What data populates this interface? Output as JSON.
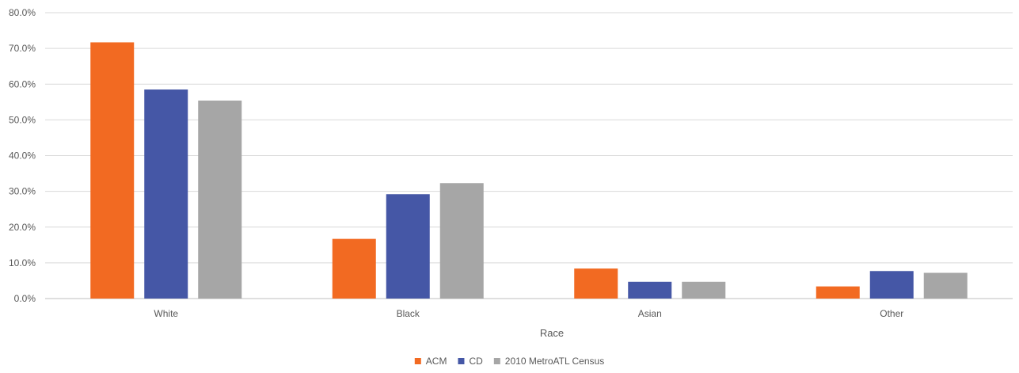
{
  "chart_data": {
    "type": "bar",
    "categories": [
      "White",
      "Black",
      "Asian",
      "Other"
    ],
    "series": [
      {
        "name": "ACM",
        "color": "#f26a22",
        "values": [
          71.7,
          16.7,
          8.4,
          3.4
        ]
      },
      {
        "name": "CD",
        "color": "#4557a6",
        "values": [
          58.5,
          29.2,
          4.7,
          7.7
        ]
      },
      {
        "name": "2010 MetroATL Census",
        "color": "#a6a6a6",
        "values": [
          55.4,
          32.3,
          4.7,
          7.2
        ]
      }
    ],
    "title": "",
    "xlabel": "Race",
    "ylabel": "",
    "ylim": [
      0,
      80
    ],
    "yticks": [
      "0.0%",
      "10.0%",
      "20.0%",
      "30.0%",
      "40.0%",
      "50.0%",
      "60.0%",
      "70.0%",
      "80.0%"
    ],
    "grid": true,
    "legend_position": "bottom-center"
  }
}
